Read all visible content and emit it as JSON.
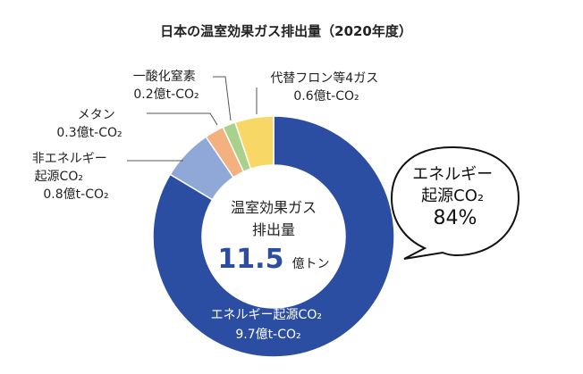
{
  "chart_data": {
    "type": "pie",
    "title": "日本の温室効果ガス排出量（2020年度）",
    "total_label_line1": "温室効果ガス",
    "total_label_line2": "排出量",
    "total_value": "11.5",
    "total_unit": "億トン",
    "slices": [
      {
        "id": "energy-co2",
        "label_lines": [
          "エネルギー起源CO₂",
          "9.7億t-CO₂"
        ],
        "value": 9.7,
        "color": "#2b4da2"
      },
      {
        "id": "nonenergy-co2",
        "label_lines": [
          "非エネルギー",
          "起源CO₂",
          "0.8億t-CO₂"
        ],
        "value": 0.8,
        "color": "#8fa8d8"
      },
      {
        "id": "methane",
        "label_lines": [
          "メタン",
          "0.3億t-CO₂"
        ],
        "value": 0.3,
        "color": "#f2b17e"
      },
      {
        "id": "n2o",
        "label_lines": [
          "一酸化窒素",
          "0.2億t-CO₂"
        ],
        "value": 0.2,
        "color": "#a9d18e"
      },
      {
        "id": "fluorocarbons",
        "label_lines": [
          "代替フロン等4ガス",
          "0.6億t-CO₂"
        ],
        "value": 0.6,
        "color": "#f7d766"
      }
    ],
    "callout_lines": [
      "エネルギー",
      "起源CO₂",
      "84%"
    ]
  }
}
